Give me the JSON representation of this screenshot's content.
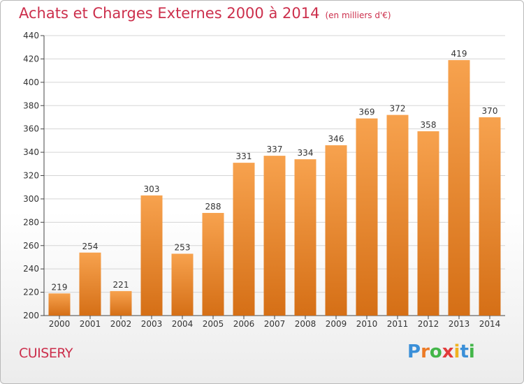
{
  "title": "Achats et Charges Externes 2000 à 2014",
  "unit_label": "(en milliers d'€)",
  "city": "CUISERY",
  "logo": {
    "letters": [
      "P",
      "r",
      "o",
      "x",
      "i",
      "t",
      "i"
    ],
    "colors": [
      "#3a8fd8",
      "#ec7a25",
      "#43b649",
      "#e23b3b",
      "#f0b21f",
      "#3a8fd8",
      "#43b649"
    ]
  },
  "colors": {
    "title": "#cc2f4c",
    "bar_light": "#f7a24e",
    "bar_dark": "#d56f16",
    "grid": "#d5d5d5",
    "axis": "#444444"
  },
  "chart_data": {
    "type": "bar",
    "title": "Achats et Charges Externes 2000 à 2014",
    "categories": [
      "2000",
      "2001",
      "2002",
      "2003",
      "2004",
      "2005",
      "2006",
      "2007",
      "2008",
      "2009",
      "2010",
      "2011",
      "2012",
      "2013",
      "2014"
    ],
    "values": [
      219,
      254,
      221,
      303,
      253,
      288,
      331,
      337,
      334,
      346,
      369,
      372,
      358,
      419,
      370
    ],
    "ylim": [
      200,
      440
    ],
    "yticks": [
      200,
      220,
      240,
      260,
      280,
      300,
      320,
      340,
      360,
      380,
      400,
      420,
      440
    ],
    "grid": true,
    "data_labels": true
  }
}
